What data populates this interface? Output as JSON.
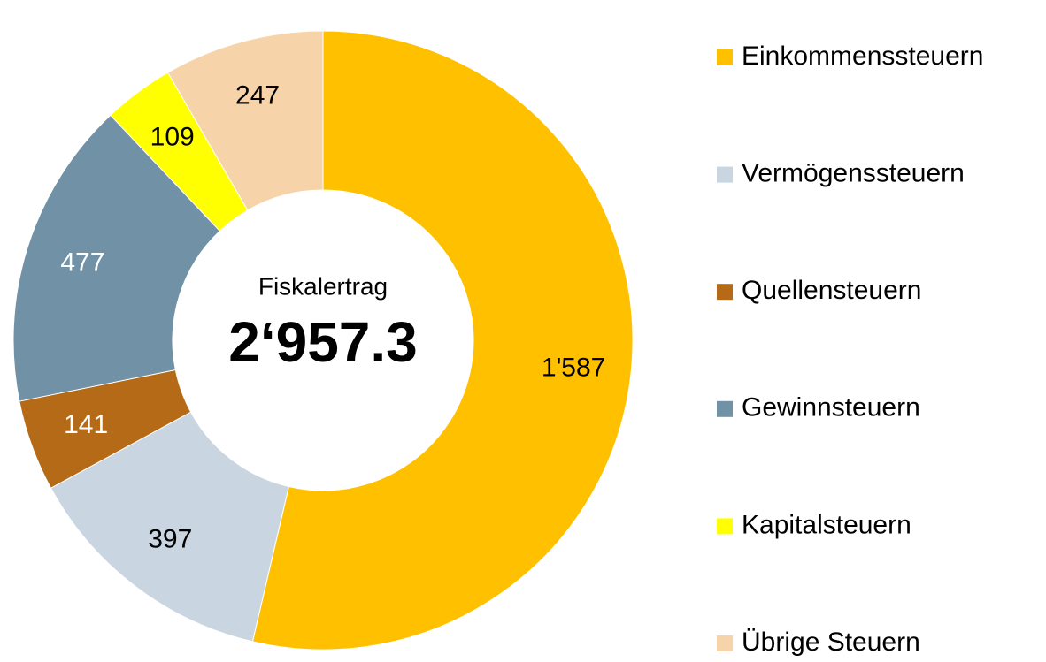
{
  "chart_data": {
    "type": "donut",
    "categories": [
      "Einkommenssteuern",
      "Vermögenssteuern",
      "Quellensteuern",
      "Gewinnsteuern",
      "Kapitalsteuern",
      "Übrige Steuern"
    ],
    "values": [
      1587,
      397,
      141,
      477,
      109,
      247
    ],
    "value_labels": [
      "1'587",
      "397",
      "141",
      "477",
      "109",
      "247"
    ],
    "colors": [
      "#FFC000",
      "#C9D5E1",
      "#B46A16",
      "#7191A6",
      "#FFFF00",
      "#F6D3A9"
    ],
    "label_colors": [
      "#000000",
      "#000000",
      "#ffffff",
      "#ffffff",
      "#000000",
      "#000000"
    ],
    "center_title": "Fiskalertrag",
    "total": 2957.3,
    "total_label": "2‘957.3",
    "legend": "right"
  }
}
